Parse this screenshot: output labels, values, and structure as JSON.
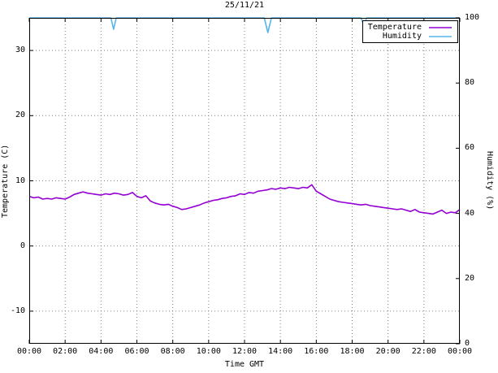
{
  "chart_data": {
    "type": "line",
    "title": "25/11/21",
    "xlabel": "Time GMT",
    "ylabel_left": "Temperature (C)",
    "ylabel_right": "Humidity (%)",
    "grid": true,
    "legend_position": "top-right",
    "x_range_hours": [
      0,
      24
    ],
    "x_tick_hours": [
      0,
      2,
      4,
      6,
      8,
      10,
      12,
      14,
      16,
      18,
      20,
      22,
      24
    ],
    "x_tick_labels": [
      "00:00",
      "02:00",
      "04:00",
      "06:00",
      "08:00",
      "10:00",
      "12:00",
      "14:00",
      "16:00",
      "18:00",
      "20:00",
      "22:00",
      "00:00"
    ],
    "left_axis": {
      "label": "Temperature (C)",
      "range": [
        -15,
        35
      ],
      "ticks": [
        -10,
        0,
        10,
        20,
        30
      ]
    },
    "right_axis": {
      "label": "Humidity (%)",
      "range": [
        0,
        100
      ],
      "ticks": [
        0,
        20,
        40,
        60,
        80,
        100
      ]
    },
    "series": [
      {
        "name": "Temperature",
        "axis": "left",
        "color": "#9400d3",
        "x_start_hour": 0,
        "x_step_hours": 0.25,
        "values": [
          7.6,
          7.4,
          7.5,
          7.2,
          7.3,
          7.2,
          7.4,
          7.3,
          7.2,
          7.5,
          7.9,
          8.1,
          8.3,
          8.1,
          8.0,
          7.9,
          7.8,
          8.0,
          7.9,
          8.1,
          8.0,
          7.8,
          7.9,
          8.2,
          7.6,
          7.4,
          7.7,
          6.9,
          6.6,
          6.4,
          6.3,
          6.4,
          6.1,
          5.9,
          5.6,
          5.7,
          5.9,
          6.1,
          6.3,
          6.6,
          6.8,
          7.0,
          7.1,
          7.3,
          7.4,
          7.6,
          7.7,
          8.0,
          7.9,
          8.2,
          8.1,
          8.4,
          8.5,
          8.6,
          8.8,
          8.7,
          8.9,
          8.8,
          9.0,
          8.9,
          8.8,
          9.0,
          8.9,
          9.4,
          8.4,
          8.0,
          7.6,
          7.2,
          7.0,
          6.8,
          6.7,
          6.6,
          6.5,
          6.4,
          6.3,
          6.4,
          6.2,
          6.1,
          6.0,
          5.9,
          5.8,
          5.7,
          5.6,
          5.7,
          5.5,
          5.3,
          5.6,
          5.2,
          5.1,
          5.0,
          4.9,
          5.2,
          5.5,
          5.0,
          5.2,
          5.1,
          5.6
        ]
      },
      {
        "name": "Humidity",
        "axis": "right",
        "color": "#56b4e9",
        "points": [
          [
            0,
            100
          ],
          [
            4.55,
            100
          ],
          [
            4.7,
            96.5
          ],
          [
            4.85,
            100
          ],
          [
            13.1,
            100
          ],
          [
            13.3,
            95.5
          ],
          [
            13.5,
            100
          ],
          [
            18.5,
            100
          ],
          [
            18.65,
            97.5
          ],
          [
            18.8,
            100
          ],
          [
            24,
            100
          ]
        ]
      }
    ]
  }
}
